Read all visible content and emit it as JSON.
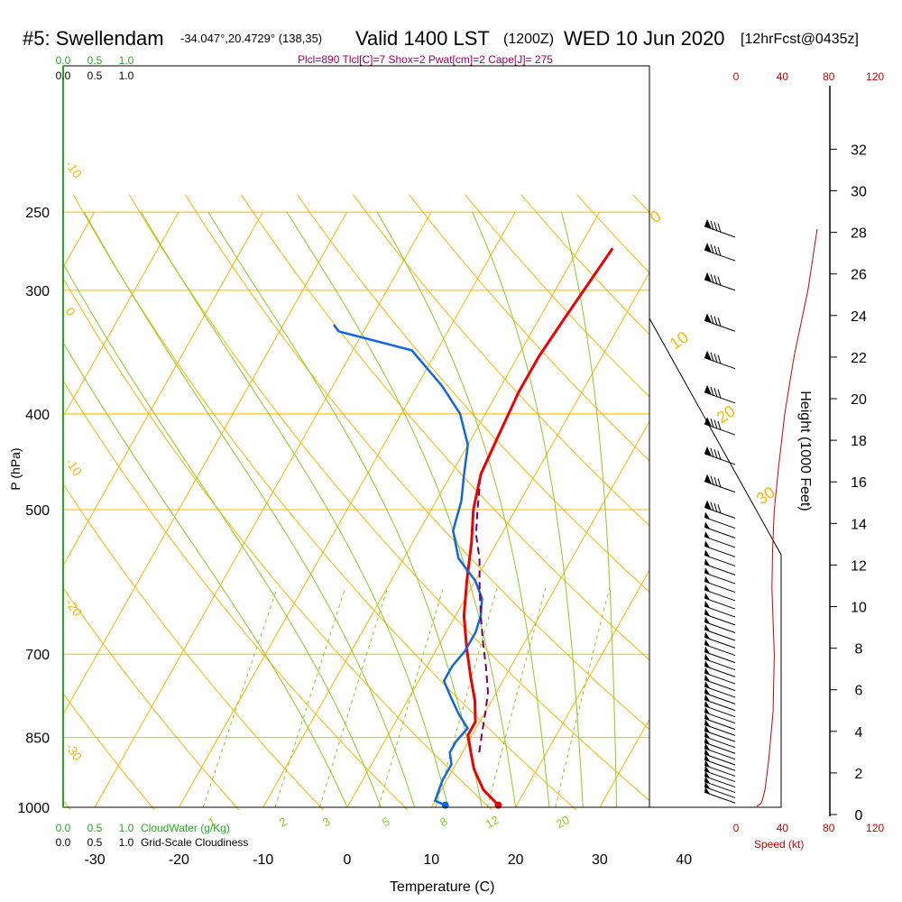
{
  "header": {
    "title": "#5: Swellendam",
    "coords": "-34.047°,20.4729° (138,35)",
    "valid": "Valid 1400 LST",
    "zulu": "(1200Z)",
    "date": "WED 10 Jun 2020",
    "forecast": "[12hrFcst@0435z]",
    "indices": "Plcl=890 Tlcl[C]=7 Shox=2 Pwat[cm]=2 Cape[J]= 275"
  },
  "axes": {
    "x_label": "Temperature (C)",
    "y_label": "P (hPa)",
    "height_label": "Height (1000 Feet)",
    "speed_label": "Speed (kt)",
    "cloudwater_label": "CloudWater (g/Kg)",
    "cloudiness_label": "Grid-Scale Cloudiness"
  },
  "colors": {
    "isotherm": "#f5b800",
    "dry_adiabat": "#f5b800",
    "moist_adiabat": "#88cc22",
    "mixing_ratio": "#88cc22",
    "temperature": "#ee0000",
    "dewpoint": "#1166dd",
    "parcel": "#770066",
    "cloud_axis": "#22aa22",
    "speed": "#cc0000"
  },
  "chart_data": {
    "type": "line",
    "pressure_ticks": [
      250,
      300,
      400,
      500,
      700,
      850,
      1000
    ],
    "temperature_ticks": [
      -30,
      -20,
      -10,
      0,
      10,
      20,
      30,
      40
    ],
    "temperature_tick_labels": [
      "-30",
      "-20",
      "-10",
      "0",
      "10",
      "20",
      "30",
      "40"
    ],
    "xlim": [
      -34,
      36
    ],
    "ylim": [
      1000,
      250
    ],
    "dry_adiabat_labels": [
      "-10",
      "0",
      "-10",
      "-20",
      "-30"
    ],
    "moist_adiabat_labels": [
      "0",
      "10",
      "20",
      "30"
    ],
    "mixing_ratio_labels": [
      "1",
      "2",
      "3",
      "5",
      "8",
      "12",
      "20"
    ],
    "cloud_ticks": [
      "0.0",
      "0.5",
      "1.0"
    ],
    "speed_ticks": [
      "0",
      "40",
      "80",
      "120"
    ],
    "height_ticks_kft": [
      0,
      2,
      4,
      6,
      8,
      10,
      12,
      14,
      16,
      18,
      20,
      22,
      24,
      26,
      28,
      30,
      32
    ],
    "series": [
      {
        "name": "temperature",
        "points": [
          [
            17.8,
            995
          ],
          [
            15,
            960
          ],
          [
            12.5,
            915
          ],
          [
            11,
            880
          ],
          [
            9.5,
            845
          ],
          [
            9.5,
            820
          ],
          [
            8,
            780
          ],
          [
            6,
            740
          ],
          [
            3.5,
            690
          ],
          [
            1,
            640
          ],
          [
            -1,
            590
          ],
          [
            -3,
            540
          ],
          [
            -5,
            500
          ],
          [
            -6.5,
            460
          ],
          [
            -7,
            420
          ],
          [
            -7.5,
            380
          ],
          [
            -7.5,
            350
          ],
          [
            -7,
            320
          ],
          [
            -6.5,
            295
          ],
          [
            -6,
            272
          ]
        ]
      },
      {
        "name": "dewpoint",
        "points": [
          [
            11.5,
            995
          ],
          [
            10,
            985
          ],
          [
            9.5,
            940
          ],
          [
            9.5,
            905
          ],
          [
            8.5,
            880
          ],
          [
            8.5,
            858
          ],
          [
            9,
            832
          ],
          [
            7,
            805
          ],
          [
            5,
            775
          ],
          [
            3,
            745
          ],
          [
            3,
            720
          ],
          [
            3.5,
            695
          ],
          [
            3.5,
            665
          ],
          [
            3,
            640
          ],
          [
            2,
            615
          ],
          [
            0,
            590
          ],
          [
            -3.5,
            560
          ],
          [
            -6,
            525
          ],
          [
            -7,
            490
          ],
          [
            -8.5,
            460
          ],
          [
            -10,
            430
          ],
          [
            -13,
            400
          ],
          [
            -17,
            375
          ],
          [
            -23,
            345
          ],
          [
            -33,
            330
          ],
          [
            -34,
            325
          ]
        ]
      },
      {
        "name": "parcel",
        "points": [
          [
            12,
            880
          ],
          [
            11,
            840
          ],
          [
            10,
            800
          ],
          [
            9,
            765
          ],
          [
            7,
            720
          ],
          [
            5,
            680
          ],
          [
            3,
            640
          ],
          [
            1,
            600
          ],
          [
            -1,
            560
          ],
          [
            -3,
            530
          ],
          [
            -4.5,
            500
          ],
          [
            -6,
            470
          ]
        ]
      },
      {
        "name": "wind_speed",
        "points": [
          [
            18,
            998
          ],
          [
            22,
            990
          ],
          [
            25,
            960
          ],
          [
            28,
            900
          ],
          [
            32,
            800
          ],
          [
            33,
            700
          ],
          [
            32,
            650
          ],
          [
            31,
            600
          ],
          [
            31.5,
            550
          ],
          [
            33,
            500
          ],
          [
            37,
            450
          ],
          [
            42,
            400
          ],
          [
            50,
            350
          ],
          [
            62,
            300
          ],
          [
            70,
            260
          ]
        ]
      }
    ]
  }
}
